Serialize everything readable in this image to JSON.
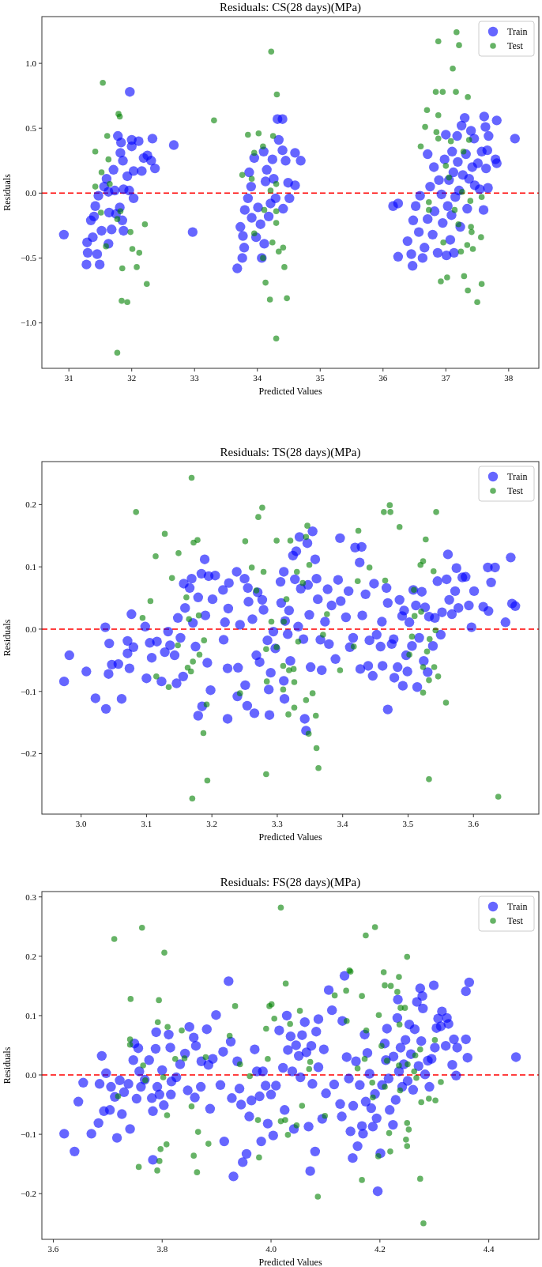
{
  "chart_data": [
    {
      "type": "scatter",
      "title": "Residuals: CS(28 days)(MPa)",
      "xlabel": "Predicted Values",
      "ylabel": "Residuals",
      "xlim": [
        30.57,
        38.48
      ],
      "ylim": [
        -1.35,
        1.36
      ],
      "xticks": [
        31,
        32,
        33,
        34,
        35,
        36,
        37,
        38
      ],
      "yticks": [
        {
          "value": -1,
          "label": "−1.0"
        },
        {
          "value": -0.5,
          "label": "−0.5"
        },
        {
          "value": 0,
          "label": "0.0"
        },
        {
          "value": 0.5,
          "label": "0.5"
        },
        {
          "value": 1,
          "label": "1.0"
        }
      ],
      "legend": "top right",
      "marker": "circle",
      "ref_lines": [
        {
          "axis": "y",
          "value": 0,
          "color": "#ff0000",
          "line_style": "dashed"
        }
      ],
      "series": [
        {
          "name": "Train",
          "color": "#0000ff",
          "x": [
            30.92,
            31.28,
            31.3,
            31.29,
            31.35,
            31.4,
            31.42,
            31.45,
            31.49,
            31.52,
            31.38,
            31.47,
            31.56,
            31.6,
            31.63,
            31.64,
            31.63,
            31.68,
            31.71,
            31.75,
            31.78,
            31.82,
            31.85,
            31.86,
            31.87,
            31.87,
            31.83,
            31.93,
            31.97,
            32.0,
            32.0,
            31.96,
            32.03,
            32.03,
            32.11,
            32.16,
            32.19,
            32.25,
            32.31,
            32.33,
            32.37,
            32.67,
            32.97,
            31.73,
            31.81,
            33.68,
            33.73,
            33.76,
            33.77,
            33.79,
            33.8,
            33.85,
            33.87,
            33.9,
            33.91,
            33.95,
            33.98,
            34.01,
            34.05,
            34.07,
            34.1,
            34.11,
            34.13,
            34.15,
            34.18,
            34.21,
            34.24,
            34.26,
            34.29,
            34.32,
            34.34,
            34.4,
            34.4,
            34.41,
            34.45,
            34.49,
            34.51,
            34.6,
            34.6,
            34.69,
            36.16,
            36.24,
            36.24,
            36.39,
            36.47,
            36.45,
            36.48,
            36.52,
            36.57,
            36.59,
            36.63,
            36.66,
            36.71,
            36.71,
            36.75,
            36.79,
            36.81,
            36.82,
            36.87,
            36.89,
            36.93,
            36.95,
            36.98,
            37.0,
            37.01,
            37.03,
            37.05,
            37.07,
            37.09,
            37.1,
            37.12,
            37.13,
            37.15,
            37.18,
            37.19,
            37.21,
            37.23,
            37.25,
            37.27,
            37.3,
            37.32,
            37.34,
            37.37,
            37.4,
            37.42,
            37.45,
            37.46,
            37.51,
            37.54,
            37.57,
            37.6,
            37.61,
            37.63,
            37.64,
            37.66,
            37.68,
            37.67,
            37.79,
            37.81,
            37.81,
            38.1
          ],
          "values": [
            -0.32,
            -0.55,
            -0.46,
            -0.38,
            -0.21,
            -0.18,
            -0.1,
            -0.47,
            -0.55,
            -0.29,
            -0.34,
            -0.02,
            0.05,
            0.11,
            0.01,
            -0.15,
            -0.39,
            -0.28,
            0.18,
            -0.16,
            0.44,
            0.31,
            -0.21,
            0.25,
            0.03,
            -0.29,
            0.39,
            0.13,
            0.78,
            0.41,
            0.36,
            0.02,
            -0.04,
            0.17,
            0.4,
            0.17,
            0.27,
            0.29,
            0.25,
            0.42,
            0.19,
            0.37,
            -0.3,
            0.02,
            -0.11,
            -0.58,
            -0.26,
            -0.5,
            -0.33,
            -0.42,
            -0.13,
            -0.04,
            0.16,
            0.05,
            -0.19,
            0.27,
            -0.34,
            -0.11,
            -0.24,
            -0.5,
            0.32,
            -0.39,
            0.09,
            0.18,
            -0.18,
            -0.08,
            0.26,
            0.11,
            -0.04,
            0.57,
            0.41,
            0.57,
            0.33,
            -0.12,
            0.25,
            0.08,
            -0.04,
            0.06,
            0.31,
            0.25,
            -0.1,
            -0.08,
            -0.49,
            -0.37,
            -0.56,
            -0.47,
            -0.21,
            -0.1,
            -0.3,
            -0.02,
            -0.5,
            -0.42,
            0.3,
            -0.2,
            0.05,
            -0.32,
            0.2,
            -0.14,
            -0.46,
            0.1,
            -0.01,
            -0.23,
            0.26,
            0.45,
            -0.48,
            -0.1,
            0.1,
            -0.36,
            -0.17,
            0.32,
            0.16,
            -0.46,
            -0.03,
            0.44,
            0.24,
            0.02,
            -0.26,
            0.52,
            0.14,
            0.58,
            0.3,
            -0.12,
            0.11,
            0.48,
            0.2,
            0.42,
            0.06,
            0.23,
            0.03,
            0.32,
            -0.13,
            0.59,
            0.51,
            0.19,
            0.33,
            0.44,
            0.04,
            0.26,
            0.23,
            0.56,
            0.42
          ]
        },
        {
          "name": "Test",
          "color": "#008000",
          "x": [
            31.54,
            31.79,
            31.81,
            31.61,
            31.42,
            31.63,
            31.52,
            31.42,
            31.65,
            31.51,
            31.59,
            31.77,
            31.82,
            31.98,
            31.85,
            32.01,
            32.08,
            32.12,
            32.21,
            32.24,
            31.84,
            31.93,
            31.77,
            33.31,
            34.22,
            34.31,
            33.85,
            34.02,
            34.25,
            34.09,
            33.95,
            33.76,
            33.91,
            34.21,
            34.3,
            34.11,
            34.3,
            34.3,
            33.95,
            34.24,
            34.34,
            34.41,
            34.43,
            34.09,
            34.13,
            34.2,
            34.47,
            34.3,
            37.17,
            37.21,
            36.88,
            37.11,
            36.84,
            36.95,
            37.16,
            37.35,
            36.7,
            36.88,
            36.67,
            36.85,
            36.88,
            37.08,
            36.6,
            37.37,
            37.28,
            37.0,
            37.05,
            37.26,
            36.73,
            37.14,
            36.73,
            37.39,
            37.57,
            37.2,
            37.4,
            37.41,
            37.56,
            36.96,
            37.24,
            37.34,
            37.43,
            36.92,
            37.02,
            37.29,
            37.35,
            37.57,
            37.5
          ],
          "values": [
            0.85,
            0.61,
            0.59,
            0.44,
            0.32,
            0.26,
            0.16,
            0.05,
            0.07,
            -0.15,
            -0.41,
            -0.2,
            -0.14,
            -0.3,
            -0.58,
            -0.43,
            -0.57,
            -0.46,
            -0.24,
            -0.7,
            -0.83,
            -0.84,
            -1.23,
            0.56,
            1.09,
            0.76,
            0.45,
            0.46,
            0.44,
            0.36,
            0.31,
            0.14,
            0.11,
            0.02,
            0.07,
            -0.13,
            -0.14,
            -0.23,
            -0.31,
            -0.38,
            -0.45,
            -0.42,
            -0.57,
            -0.5,
            -0.69,
            -0.82,
            -0.81,
            -1.12,
            1.24,
            1.14,
            1.17,
            0.96,
            0.78,
            0.78,
            0.78,
            0.74,
            0.64,
            0.6,
            0.51,
            0.47,
            0.42,
            0.4,
            0.36,
            0.41,
            0.32,
            0.21,
            0.12,
            0.01,
            -0.07,
            -0.13,
            -0.13,
            -0.06,
            -0.03,
            -0.24,
            -0.26,
            -0.3,
            -0.34,
            -0.38,
            -0.45,
            -0.4,
            -0.43,
            -0.68,
            -0.65,
            -0.64,
            -0.75,
            -0.7,
            -0.84
          ]
        }
      ]
    },
    {
      "type": "scatter",
      "title": "Residuals: TS(28 days)(MPa)",
      "xlabel": "Predicted Values",
      "ylabel": "Residuals",
      "xlim": [
        2.94,
        3.7
      ],
      "ylim": [
        -0.297,
        0.269
      ],
      "xticks": [
        {
          "value": 3,
          "label": "3.0"
        },
        3.1,
        3.2,
        3.3,
        3.4,
        3.5,
        3.6
      ],
      "yticks": [
        {
          "value": -0.2,
          "label": "−0.2"
        },
        {
          "value": -0.1,
          "label": "−0.1"
        },
        {
          "value": 0,
          "label": "0.0"
        },
        0.1,
        0.2
      ],
      "legend": "top right",
      "marker": "circle",
      "ref_lines": [
        {
          "axis": "y",
          "value": 0,
          "color": "#ff0000",
          "line_style": "dashed"
        }
      ],
      "series": [
        {
          "name": "Train",
          "color": "#0000ff",
          "x": [
            2.974,
            2.982,
            3.008,
            3.022,
            3.038,
            3.037,
            3.043,
            3.042,
            3.047,
            3.057,
            3.062,
            3.071,
            3.071,
            3.074,
            3.077,
            3.08,
            3.098,
            3.1,
            3.105,
            3.108,
            3.116,
            3.123,
            3.128,
            3.133,
            3.136,
            3.143,
            3.146,
            3.148,
            3.152,
            3.156,
            3.157,
            3.159,
            3.166,
            3.169,
            3.171,
            3.175,
            3.179,
            3.179,
            3.184,
            3.185,
            3.189,
            3.19,
            3.193,
            3.195,
            3.198,
            3.201,
            3.205,
            3.217,
            3.218,
            3.22,
            3.224,
            3.224,
            3.226,
            3.225,
            3.238,
            3.239,
            3.24,
            3.243,
            3.25,
            3.251,
            3.254,
            3.255,
            3.256,
            3.262,
            3.265,
            3.268,
            3.27,
            3.273,
            3.277,
            3.279,
            3.285,
            3.287,
            3.288,
            3.29,
            3.294,
            3.297,
            3.305,
            3.306,
            3.31,
            3.31,
            3.311,
            3.312,
            3.316,
            3.318,
            3.32,
            3.324,
            3.327,
            3.329,
            3.332,
            3.334,
            3.336,
            3.34,
            3.342,
            3.344,
            3.346,
            3.347,
            3.349,
            3.351,
            3.354,
            3.358,
            3.36,
            3.362,
            3.366,
            3.368,
            3.373,
            3.377,
            3.379,
            3.383,
            3.389,
            3.393,
            3.396,
            3.397,
            3.405,
            3.409,
            3.411,
            3.416,
            3.419,
            3.426,
            3.429,
            3.427,
            3.43,
            3.435,
            3.439,
            3.441,
            3.446,
            3.448,
            3.452,
            3.458,
            3.46,
            3.461,
            3.467,
            3.469,
            3.469,
            3.475,
            3.478,
            3.479,
            3.484,
            3.487,
            3.491,
            3.492,
            3.494,
            3.497,
            3.499,
            3.502,
            3.506,
            3.508,
            3.512,
            3.514,
            3.517,
            3.521,
            3.524,
            3.526,
            3.53,
            3.532,
            3.538,
            3.541,
            3.545,
            3.55,
            3.552,
            3.559,
            3.561,
            3.563,
            3.567,
            3.572,
            3.574,
            3.577,
            3.583,
            3.588,
            3.593,
            3.597,
            3.601,
            3.615,
            3.622,
            3.623,
            3.627,
            3.633,
            3.649,
            3.657,
            3.659,
            3.664
          ],
          "values": [
            -0.084,
            -0.042,
            -0.068,
            -0.111,
            -0.128,
            0.003,
            -0.023,
            -0.072,
            -0.057,
            -0.056,
            -0.112,
            -0.039,
            -0.019,
            -0.063,
            0.024,
            -0.029,
            0.004,
            -0.079,
            -0.022,
            -0.046,
            -0.02,
            -0.084,
            -0.037,
            -0.004,
            -0.026,
            -0.042,
            -0.087,
            0.018,
            -0.014,
            -0.076,
            0.073,
            0.034,
            0.066,
            0.081,
            0.01,
            -0.028,
            0.051,
            -0.139,
            0.089,
            -0.124,
            0.112,
            0.022,
            -0.054,
            0.085,
            -0.098,
            0.048,
            0.086,
            0.063,
            -0.017,
            0.011,
            -0.144,
            -0.063,
            0.074,
            0.033,
            0.092,
            -0.108,
            -0.062,
            0.007,
            0.081,
            -0.09,
            -0.123,
            0.066,
            0.044,
            0.016,
            -0.135,
            -0.042,
            0.059,
            -0.053,
            0.047,
            0.031,
            -0.018,
            -0.097,
            -0.138,
            -0.07,
            -0.004,
            -0.031,
            0.076,
            0.042,
            0.092,
            -0.083,
            -0.112,
            0.013,
            -0.008,
            0.03,
            -0.051,
            0.118,
            0.08,
            0.125,
            0.004,
            0.148,
            0.065,
            -0.016,
            -0.144,
            -0.163,
            0.138,
            0.071,
            0.023,
            -0.061,
            0.157,
            0.112,
            0.081,
            0.048,
            -0.017,
            -0.066,
            0.012,
            0.064,
            -0.024,
            0.038,
            -0.048,
            0.079,
            0.146,
            0.045,
            0.019,
            0.061,
            -0.029,
            -0.014,
            0.131,
            0.107,
            0.132,
            -0.064,
            0.022,
            0.056,
            -0.059,
            -0.018,
            -0.075,
            0.073,
            -0.009,
            -0.028,
            0.012,
            -0.059,
            0.066,
            -0.129,
            0.042,
            -0.024,
            -0.016,
            -0.078,
            -0.061,
            0.047,
            0.021,
            -0.091,
            0.03,
            -0.042,
            -0.068,
            0.011,
            -0.027,
            0.063,
            0.038,
            -0.093,
            -0.014,
            0.06,
            -0.051,
            0.035,
            -0.069,
            0.02,
            -0.027,
            0.018,
            0.077,
            -0.009,
            0.027,
            0.08,
            0.12,
            0.047,
            0.024,
            0.061,
            0.098,
            0.034,
            0.083,
            0.084,
            0.038,
            0.003,
            0.061,
            0.036,
            0.099,
            0.029,
            0.075,
            0.099,
            0.011,
            0.115,
            0.041,
            0.037
          ]
        },
        {
          "name": "Test",
          "color": "#008000",
          "x": [
            3.169,
            3.084,
            3.128,
            3.114,
            3.149,
            3.139,
            3.106,
            3.094,
            3.172,
            3.178,
            3.161,
            3.165,
            3.18,
            3.188,
            3.181,
            3.171,
            3.163,
            3.168,
            3.115,
            3.134,
            3.148,
            3.192,
            3.187,
            3.193,
            3.17,
            3.251,
            3.277,
            3.271,
            3.261,
            3.279,
            3.268,
            3.243,
            3.283,
            3.299,
            3.32,
            3.346,
            3.344,
            3.33,
            3.349,
            3.339,
            3.314,
            3.291,
            3.31,
            3.332,
            3.299,
            3.283,
            3.318,
            3.325,
            3.309,
            3.326,
            3.284,
            3.309,
            3.354,
            3.344,
            3.326,
            3.317,
            3.359,
            3.348,
            3.36,
            3.363,
            3.376,
            3.37,
            3.396,
            3.417,
            3.424,
            3.441,
            3.423,
            3.465,
            3.463,
            3.472,
            3.473,
            3.487,
            3.527,
            3.519,
            3.523,
            3.509,
            3.52,
            3.51,
            3.506,
            3.502,
            3.529,
            3.533,
            3.542,
            3.54,
            3.523,
            3.546,
            3.532,
            3.523,
            3.558,
            3.543,
            3.539,
            3.532,
            3.638
          ],
          "values": [
            0.243,
            0.188,
            0.153,
            0.117,
            0.122,
            0.082,
            0.045,
            0.018,
            0.139,
            0.143,
            0.051,
            0.016,
            0.022,
            -0.018,
            -0.041,
            -0.052,
            -0.062,
            -0.068,
            -0.076,
            -0.093,
            -0.026,
            -0.121,
            -0.167,
            -0.243,
            -0.272,
            0.141,
            0.195,
            0.18,
            0.099,
            0.092,
            0.062,
            -0.103,
            -0.233,
            0.142,
            0.142,
            0.166,
            0.148,
            0.092,
            0.103,
            0.074,
            0.048,
            0.012,
            0.012,
            -0.02,
            -0.029,
            -0.032,
            -0.066,
            -0.064,
            -0.059,
            -0.085,
            -0.084,
            -0.097,
            -0.103,
            -0.114,
            -0.126,
            -0.137,
            -0.139,
            -0.168,
            -0.191,
            -0.223,
            0.024,
            -0.009,
            -0.066,
            -0.028,
            0.158,
            0.099,
            0.077,
            0.078,
            0.188,
            0.199,
            0.188,
            0.164,
            0.144,
            0.103,
            0.109,
            0.063,
            0.028,
            0.021,
            -0.012,
            -0.041,
            -0.036,
            -0.016,
            -0.002,
            -0.061,
            -0.061,
            -0.076,
            -0.082,
            -0.102,
            -0.118,
            0.188,
            0.093,
            -0.241,
            -0.269
          ]
        }
      ]
    },
    {
      "type": "scatter",
      "title": "Residuals: FS(28 days)(MPa)",
      "xlabel": "Predicted Values",
      "ylabel": "Residuals",
      "xlim": [
        3.579,
        4.492
      ],
      "ylim": [
        -0.277,
        0.309
      ],
      "xticks": [
        3.6,
        3.8,
        {
          "value": 4,
          "label": "4.0"
        },
        4.2,
        4.4
      ],
      "yticks": [
        {
          "value": -0.2,
          "label": "−0.2"
        },
        {
          "value": -0.1,
          "label": "−0.1"
        },
        {
          "value": 0,
          "label": "0.0"
        },
        0.1,
        0.2,
        0.3
      ],
      "legend": "top right",
      "marker": "circle",
      "ref_lines": [
        {
          "axis": "y",
          "value": 0,
          "color": "#ff0000",
          "line_style": "dashed"
        }
      ],
      "series": [
        {
          "name": "Train",
          "color": "#0000ff",
          "x": [
            3.62,
            3.639,
            3.646,
            3.655,
            3.67,
            3.683,
            3.685,
            3.689,
            3.693,
            3.697,
            3.704,
            3.706,
            3.713,
            3.717,
            3.722,
            3.726,
            3.73,
            3.738,
            3.741,
            3.747,
            3.749,
            3.753,
            3.756,
            3.758,
            3.761,
            3.768,
            3.776,
            3.781,
            3.783,
            3.783,
            3.789,
            3.788,
            3.791,
            3.795,
            3.8,
            3.803,
            3.812,
            3.815,
            3.816,
            3.817,
            3.826,
            3.833,
            3.842,
            3.847,
            3.85,
            3.858,
            3.86,
            3.862,
            3.871,
            3.872,
            3.882,
            3.885,
            3.888,
            3.893,
            3.899,
            3.907,
            3.912,
            3.914,
            3.922,
            3.926,
            3.928,
            3.931,
            3.938,
            3.942,
            3.945,
            3.948,
            3.955,
            3.96,
            3.964,
            3.97,
            3.974,
            3.979,
            3.982,
            3.985,
            3.99,
            3.994,
            4.0,
            4.004,
            4.009,
            4.015,
            4.022,
            4.025,
            4.029,
            4.031,
            4.036,
            4.039,
            4.042,
            4.046,
            4.051,
            4.054,
            4.057,
            4.062,
            4.065,
            4.069,
            4.072,
            4.074,
            4.076,
            4.081,
            4.083,
            4.087,
            4.087,
            4.094,
            4.097,
            4.101,
            4.106,
            4.112,
            4.116,
            4.131,
            4.135,
            4.139,
            4.13,
            4.127,
            4.143,
            4.146,
            4.15,
            4.151,
            4.156,
            4.159,
            4.163,
            4.167,
            4.169,
            4.172,
            4.174,
            4.177,
            4.181,
            4.184,
            4.187,
            4.191,
            4.194,
            4.196,
            4.201,
            4.204,
            4.209,
            4.211,
            4.213,
            4.216,
            4.218,
            4.224,
            4.225,
            4.229,
            4.232,
            4.233,
            4.235,
            4.238,
            4.241,
            4.244,
            4.247,
            4.251,
            4.254,
            4.257,
            4.261,
            4.264,
            4.268,
            4.271,
            4.274,
            4.276,
            4.278,
            4.279,
            4.283,
            4.288,
            4.291,
            4.295,
            4.299,
            4.301,
            4.304,
            4.307,
            4.312,
            4.314,
            4.321,
            4.323,
            4.326,
            4.333,
            4.34,
            4.336,
            4.342,
            4.358,
            4.358,
            4.361,
            4.364,
            4.45
          ],
          "values": [
            -0.099,
            -0.129,
            -0.045,
            -0.013,
            -0.099,
            -0.081,
            -0.015,
            0.032,
            -0.061,
            0.003,
            -0.059,
            -0.02,
            -0.037,
            -0.106,
            -0.009,
            -0.066,
            -0.029,
            -0.015,
            -0.091,
            0.025,
            0.053,
            -0.04,
            0.045,
            0.006,
            -0.02,
            -0.008,
            0.025,
            -0.039,
            -0.061,
            -0.143,
            0.072,
            0.044,
            -0.02,
            -0.033,
            0.008,
            -0.051,
            0.068,
            0.046,
            -0.033,
            -0.011,
            -0.004,
            0.018,
            0.036,
            -0.026,
            0.081,
            0.063,
            -0.038,
            0.049,
            -0.02,
            0.023,
            0.077,
            0.017,
            -0.057,
            0.027,
            0.101,
            -0.017,
            0.039,
            -0.112,
            0.158,
            0.056,
            -0.039,
            -0.171,
            0.023,
            -0.023,
            -0.05,
            -0.147,
            -0.133,
            -0.07,
            -0.043,
            0.043,
            0.006,
            -0.036,
            -0.112,
            0.006,
            -0.018,
            -0.082,
            -0.033,
            -0.102,
            -0.018,
            0.075,
            0.012,
            -0.059,
            0.1,
            0.042,
            0.065,
            0.006,
            -0.091,
            0.05,
            0.032,
            -0.004,
            0.067,
            0.089,
            0.038,
            -0.087,
            -0.162,
            0.049,
            -0.015,
            -0.129,
            0.073,
            0.013,
            0.094,
            -0.074,
            0.043,
            -0.031,
            0.143,
            0.109,
            -0.016,
            0.091,
            0.167,
            0.03,
            -0.07,
            -0.049,
            -0.006,
            -0.095,
            -0.14,
            -0.052,
            0.023,
            -0.12,
            -0.017,
            -0.086,
            -0.099,
            0.068,
            -0.045,
            0.037,
            0.002,
            -0.056,
            -0.087,
            -0.032,
            -0.073,
            -0.196,
            -0.132,
            -0.017,
            0.053,
            0.025,
            0.078,
            -0.006,
            -0.059,
            -0.084,
            0.031,
            -0.042,
            0.096,
            0.127,
            0.006,
            0.046,
            -0.02,
            0.018,
            0.059,
            -0.01,
            0.085,
            0.035,
            -0.025,
            0.077,
            0.123,
            0.015,
            0.146,
            0.057,
            0.133,
            0.112,
            0.001,
            0.024,
            -0.02,
            0.027,
            0.151,
            0.046,
            0.079,
            0.095,
            0.082,
            0.107,
            0.049,
            0.096,
            0.086,
            0.017,
            -0.001,
            0.06,
            0.046,
            0.06,
            0.141,
            0.029,
            0.156,
            0.03
          ]
        },
        {
          "name": "Test",
          "color": "#008000",
          "x": [
            3.712,
            3.763,
            3.804,
            3.742,
            3.794,
            3.792,
            3.81,
            3.741,
            3.741,
            3.765,
            3.769,
            3.802,
            3.719,
            3.809,
            3.836,
            3.824,
            3.841,
            3.88,
            3.854,
            3.866,
            3.885,
            3.808,
            3.797,
            3.795,
            3.858,
            3.757,
            3.791,
            3.864,
            3.924,
            3.934,
            3.943,
            3.961,
            3.976,
            3.978,
            3.991,
            3.994,
            3.997,
            4.001,
            4.006,
            4.018,
            4.027,
            4.018,
            4.026,
            4.031,
            4.035,
            4.047,
            4.053,
            4.057,
            4.07,
            4.072,
            4.086,
            4.099,
            4.117,
            4.138,
            4.139,
            4.144,
            4.146,
            4.159,
            4.167,
            4.167,
            4.174,
            4.191,
            4.175,
            4.172,
            4.186,
            4.187,
            4.198,
            4.197,
            4.207,
            4.209,
            4.22,
            4.203,
            4.213,
            4.209,
            4.217,
            4.219,
            4.232,
            4.235,
            4.238,
            4.246,
            4.236,
            4.237,
            4.235,
            4.25,
            4.251,
            4.25,
            4.253,
            4.248,
            4.25,
            4.263,
            4.267,
            4.265,
            4.274,
            4.276,
            4.274,
            4.28,
            4.29,
            4.302,
            4.301,
            4.312
          ],
          "values": [
            0.229,
            0.248,
            0.206,
            0.128,
            0.126,
            0.089,
            0.081,
            0.06,
            0.051,
            0.016,
            -0.009,
            -0.004,
            -0.036,
            -0.068,
            0.075,
            0.027,
            0.028,
            0.03,
            -0.053,
            -0.096,
            -0.116,
            -0.117,
            -0.125,
            -0.145,
            -0.136,
            -0.155,
            -0.161,
            -0.164,
            0.066,
            0.116,
            0.018,
            -0.002,
            -0.076,
            -0.139,
            0.078,
            0.027,
            0.116,
            0.119,
            0.095,
            0.282,
            0.154,
            -0.078,
            -0.076,
            -0.101,
            0.086,
            -0.085,
            0.108,
            -0.052,
            0.01,
            0.022,
            -0.205,
            -0.069,
            0.134,
            0.142,
            0.091,
            0.176,
            0.174,
            0.011,
            0.133,
            -0.177,
            0.235,
            0.249,
            0.075,
            0.027,
            -0.013,
            -0.038,
            0.101,
            -0.137,
            0.173,
            0.151,
            0.15,
            0.049,
            0.024,
            -0.02,
            -0.098,
            -0.129,
            0.14,
            0.165,
            0.113,
            0.113,
            0.085,
            -0.026,
            0.016,
            0.199,
            0.018,
            -0.081,
            -0.092,
            -0.109,
            -0.12,
            0.006,
            -0.005,
            0.033,
            0.043,
            -0.046,
            -0.175,
            -0.25,
            -0.04,
            -0.043,
            0.059,
            -0.012
          ]
        }
      ]
    }
  ]
}
